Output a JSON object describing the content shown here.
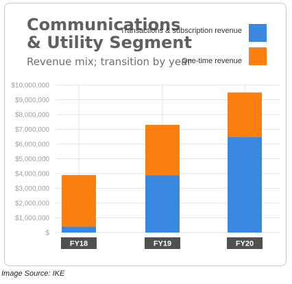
{
  "footer": {
    "source": "Image Source: IKE"
  },
  "chart_data": {
    "type": "bar",
    "stacked": true,
    "title": "Communications & Utility Segment",
    "subtitle": "Revenue mix; transition by year",
    "categories": [
      "FY18",
      "FY19",
      "FY20"
    ],
    "series": [
      {
        "name": "Transactions & subscription revenue",
        "color": "#3a87e0",
        "values": [
          400000,
          3900000,
          6500000
        ]
      },
      {
        "name": "One-time revenue",
        "color": "#f9800e",
        "values": [
          3500000,
          3400000,
          3000000
        ]
      }
    ],
    "ylim": [
      0,
      10000000
    ],
    "y_ticks": [
      "$",
      "$1,000,000",
      "$2,000,000",
      "$3,000,000",
      "$4,000,000",
      "$5,000,000",
      "$6,000,000",
      "$7,000,000",
      "$8,000,000",
      "$9,000,000",
      "$10,000,000"
    ],
    "grid": true,
    "legend_position": "top-right",
    "xlabel": "",
    "ylabel": ""
  }
}
